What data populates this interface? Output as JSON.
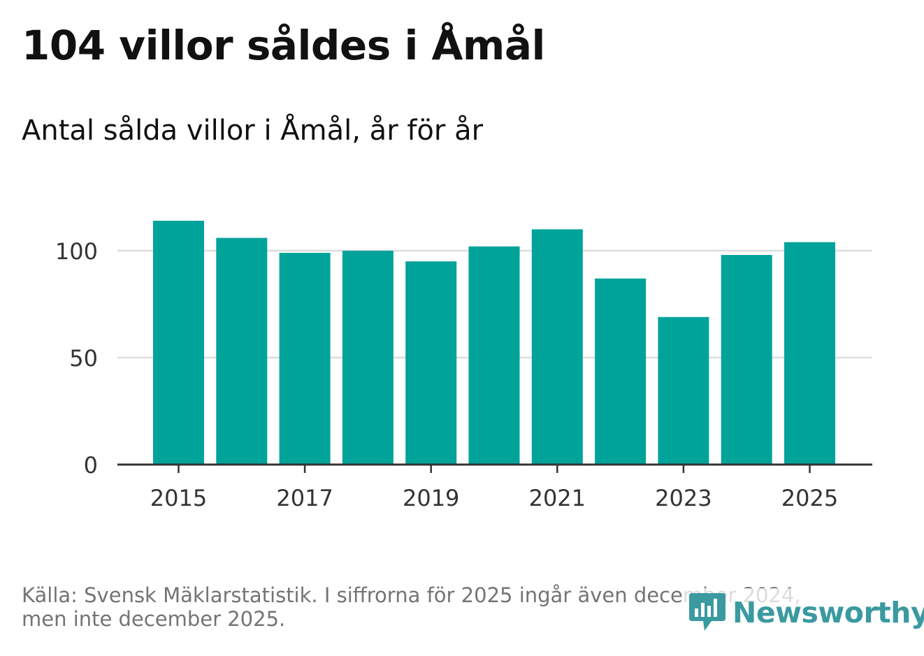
{
  "header": {
    "title": "104 villor såldes i Åmål",
    "subtitle": "Antal sålda villor i Åmål, år för år"
  },
  "footer": {
    "source_line1": "Källa: Svensk Mäklarstatistik. I siffrorna för 2025 ingår även december 2024,",
    "source_line2": "men inte december 2025."
  },
  "brand": {
    "name": "Newsworthy",
    "icon": "newsworthy-logo-icon",
    "color": "#3a9aa0"
  },
  "chart_data": {
    "type": "bar",
    "title": "104 villor såldes i Åmål",
    "subtitle": "Antal sålda villor i Åmål, år för år",
    "xlabel": "",
    "ylabel": "",
    "categories": [
      "2015",
      "2016",
      "2017",
      "2018",
      "2019",
      "2020",
      "2021",
      "2022",
      "2023",
      "2024",
      "2025"
    ],
    "values": [
      114,
      106,
      99,
      100,
      95,
      102,
      110,
      87,
      69,
      98,
      104
    ],
    "x_tick_labels": [
      "2015",
      "2017",
      "2019",
      "2021",
      "2023",
      "2025"
    ],
    "y_ticks": [
      0,
      50,
      100
    ],
    "y_tick_labels": [
      "0",
      "50",
      "100"
    ],
    "ylim": [
      0,
      114
    ],
    "grid": true,
    "bar_color": "#00a39a",
    "grid_color": "#dddddd",
    "axis_color": "#333333"
  }
}
